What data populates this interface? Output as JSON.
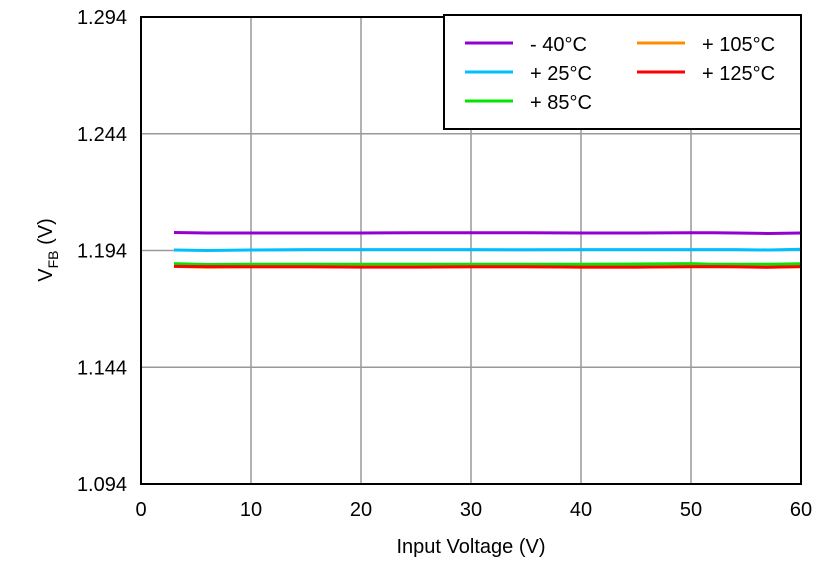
{
  "chart_data": {
    "type": "line",
    "title": "",
    "xlabel": "Input Voltage (V)",
    "ylabel_main": "V",
    "ylabel_sub": "FB",
    "ylabel_unit": " (V)",
    "xlim": [
      0,
      60
    ],
    "ylim": [
      1.094,
      1.294
    ],
    "xticks": [
      0,
      10,
      20,
      30,
      40,
      50,
      60
    ],
    "yticks": [
      "1.094",
      "1.144",
      "1.194",
      "1.244",
      "1.294"
    ],
    "grid": true,
    "legend_position": "top-right",
    "x": [
      3,
      6,
      10,
      15,
      20,
      25,
      30,
      35,
      40,
      45,
      50,
      52,
      54,
      57,
      60
    ],
    "series": [
      {
        "name": "- 40°C",
        "color": "#9400D3",
        "values": [
          1.2017,
          1.2015,
          1.2015,
          1.2015,
          1.2015,
          1.2016,
          1.2016,
          1.2016,
          1.2015,
          1.2015,
          1.2016,
          1.2016,
          1.2015,
          1.2013,
          1.2015
        ]
      },
      {
        "name": "+ 25°C",
        "color": "#00BFFF",
        "values": [
          1.1942,
          1.194,
          1.1942,
          1.1944,
          1.1944,
          1.1944,
          1.1944,
          1.1943,
          1.1944,
          1.1944,
          1.1944,
          1.1944,
          1.1944,
          1.1942,
          1.1945
        ]
      },
      {
        "name": "+ 85°C",
        "color": "#00E600",
        "values": [
          1.1884,
          1.188,
          1.1881,
          1.1881,
          1.1881,
          1.1881,
          1.1881,
          1.1881,
          1.1881,
          1.1882,
          1.1884,
          1.1881,
          1.1881,
          1.1881,
          1.1883
        ]
      },
      {
        "name": "+ 105°C",
        "color": "#FF8C00",
        "values": [
          1.1872,
          1.1868,
          1.187,
          1.187,
          1.187,
          1.187,
          1.187,
          1.187,
          1.1869,
          1.1869,
          1.187,
          1.187,
          1.187,
          1.1869,
          1.1871
        ]
      },
      {
        "name": "+ 125°C",
        "color": "#FF0000",
        "values": [
          1.1872,
          1.1871,
          1.187,
          1.187,
          1.1869,
          1.1869,
          1.187,
          1.187,
          1.1869,
          1.1869,
          1.1871,
          1.1871,
          1.187,
          1.1868,
          1.1871
        ]
      }
    ]
  }
}
